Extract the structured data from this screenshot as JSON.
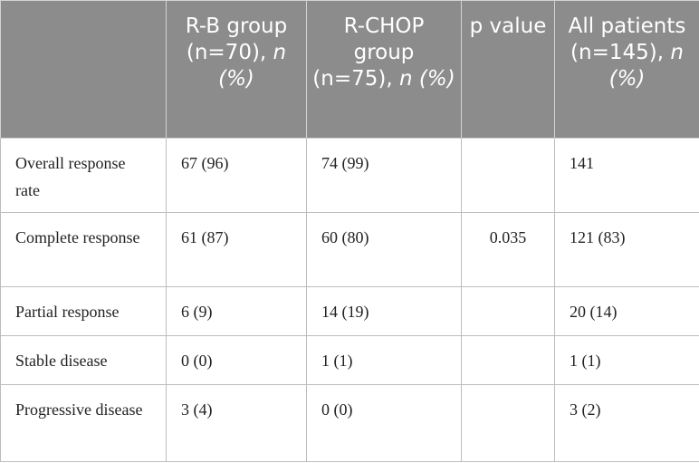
{
  "table": {
    "header": {
      "col0": "",
      "col1": {
        "text": "R-B group (n=70), ",
        "em": "n",
        "tail": " (%)"
      },
      "col2": {
        "text": "R-CHOP group (n=75), ",
        "em": "n",
        "tail": " (%)"
      },
      "col3": {
        "text": "p value"
      },
      "col4": {
        "text": "All patients (n=145), ",
        "em": "n",
        "tail": " (%)"
      }
    },
    "rows": [
      {
        "label": "Overall response rate",
        "rb": "67 (96)",
        "rchop": "74 (99)",
        "p": "",
        "all": "141"
      },
      {
        "label": "Complete response",
        "rb": "61 (87)",
        "rchop": "60 (80)",
        "p": "0.035",
        "all": "121 (83)"
      },
      {
        "label": "Partial response",
        "rb": "6 (9)",
        "rchop": "14 (19)",
        "p": "",
        "all": "20 (14)"
      },
      {
        "label": "Stable disease",
        "rb": "0 (0)",
        "rchop": "1 (1)",
        "p": "",
        "all": "1 (1)"
      },
      {
        "label": "Progressive disease",
        "rb": "3 (4)",
        "rchop": "0 (0)",
        "p": "",
        "all": "3 (2)"
      }
    ]
  }
}
